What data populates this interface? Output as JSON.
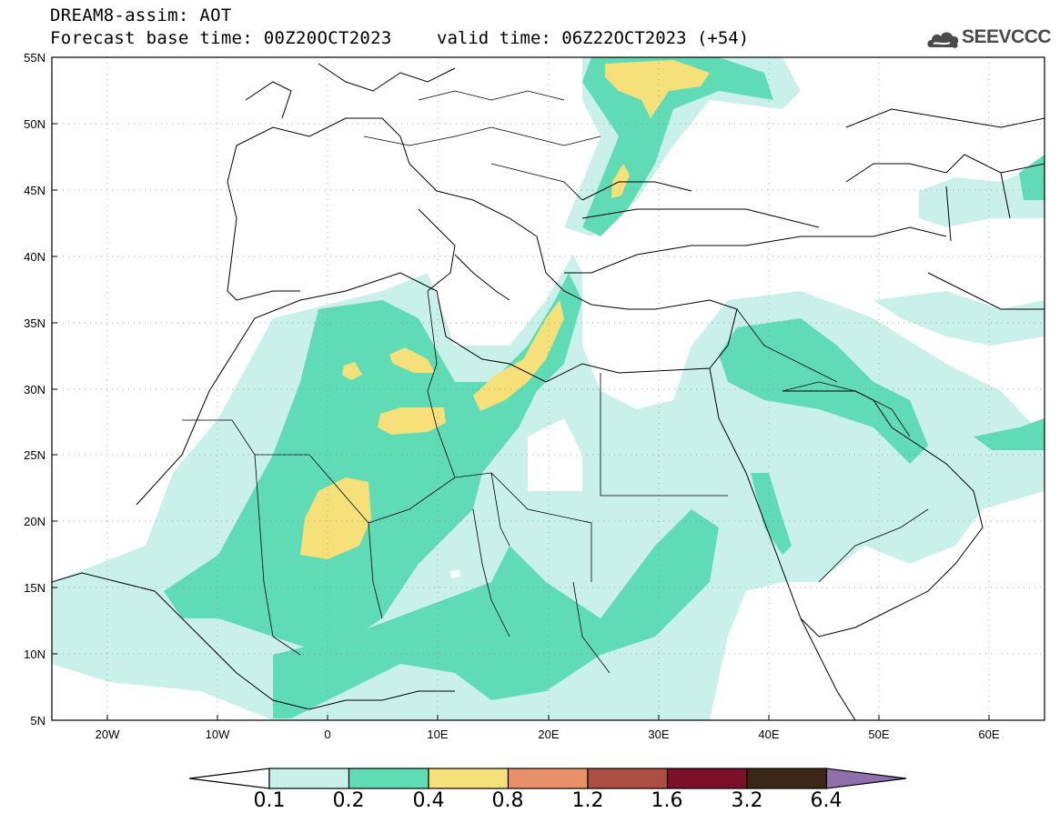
{
  "title": {
    "line1": "DREAM8-assim: AOT",
    "line2": "Forecast base time: 00Z20OCT2023",
    "valid": "valid time: 06Z22OCT2023 (+54)"
  },
  "logo": {
    "text": "SEEVCCC",
    "icon": "cloud-logo-icon"
  },
  "map": {
    "lon_labels": [
      "20W",
      "10W",
      "0",
      "10E",
      "20E",
      "30E",
      "40E",
      "50E",
      "60E"
    ],
    "lat_labels": [
      "55N",
      "50N",
      "45N",
      "40N",
      "35N",
      "30N",
      "25N",
      "20N",
      "15N",
      "10N",
      "5N"
    ],
    "extent": {
      "lon": [
        -25,
        65
      ],
      "lat": [
        5,
        55
      ]
    },
    "grid": true
  },
  "colorbar": {
    "labels": [
      "0.1",
      "0.2",
      "0.4",
      "0.8",
      "1.2",
      "1.6",
      "3.2",
      "6.4"
    ],
    "colors": [
      "#ffffff",
      "#c9f1ea",
      "#5fdcb5",
      "#f5e07a",
      "#e8906a",
      "#ad4e42",
      "#7c0f2a",
      "#3b2716",
      "#8f6fac"
    ]
  }
}
